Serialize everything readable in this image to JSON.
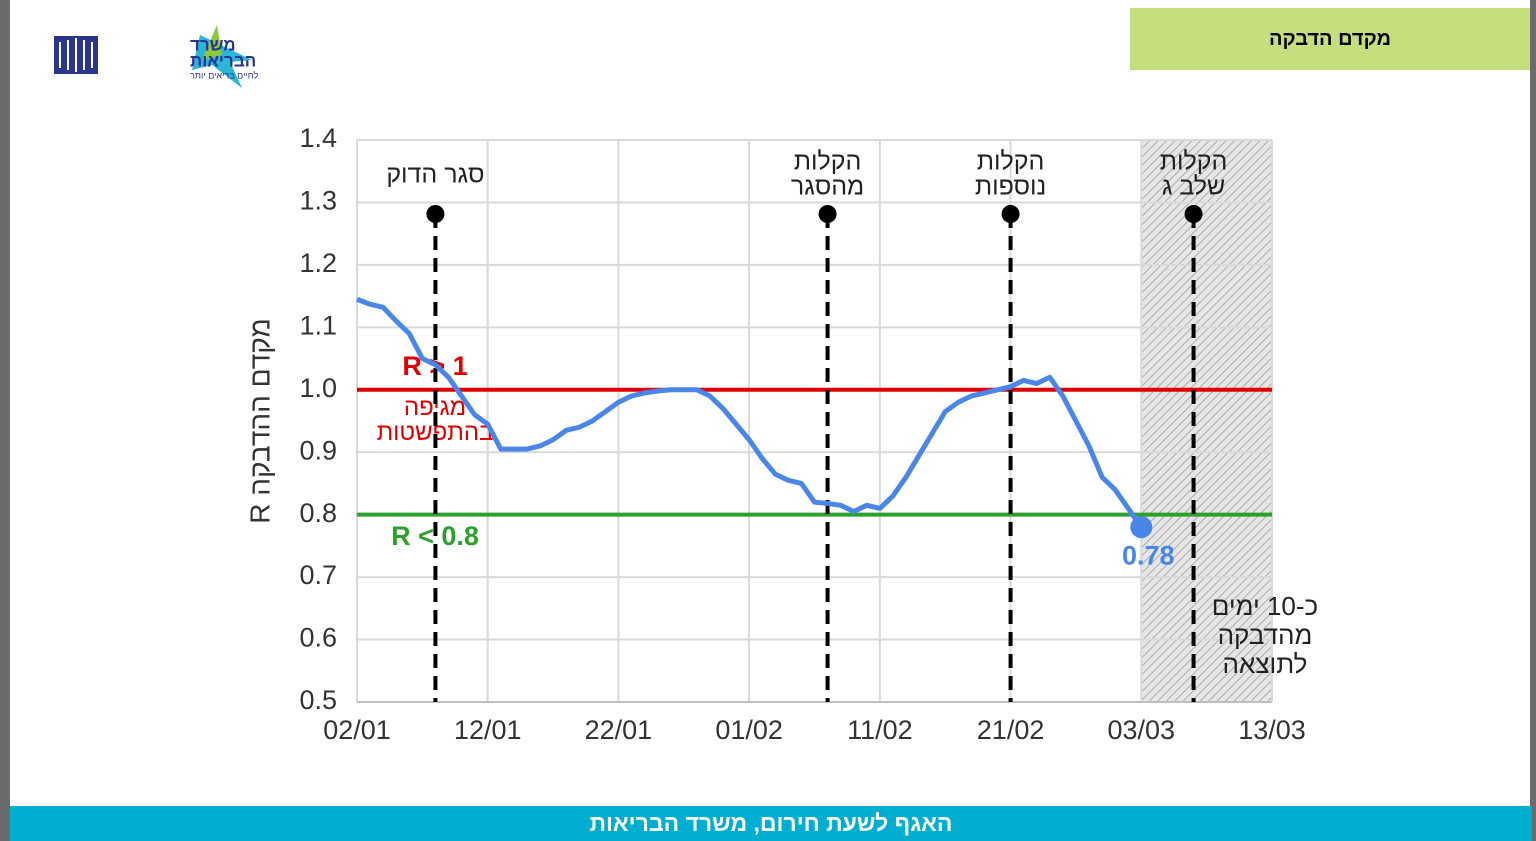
{
  "header": {
    "title": "מקדם הדבקה",
    "logo_name": [
      "משרד",
      "הבריאות"
    ],
    "logo_tagline": "לחיים בריאים יותר"
  },
  "footer": "האגף לשעת חירום, משרד הבריאות",
  "chart_data": {
    "type": "line",
    "y_label": "מקדם ההדבקה R",
    "x": [
      "02/01",
      "03/01",
      "04/01",
      "05/01",
      "06/01",
      "07/01",
      "08/01",
      "09/01",
      "10/01",
      "11/01",
      "12/01",
      "13/01",
      "14/01",
      "15/01",
      "16/01",
      "17/01",
      "18/01",
      "19/01",
      "20/01",
      "21/01",
      "22/01",
      "23/01",
      "24/01",
      "25/01",
      "26/01",
      "27/01",
      "28/01",
      "29/01",
      "30/01",
      "31/01",
      "01/02",
      "02/02",
      "03/02",
      "04/02",
      "05/02",
      "06/02",
      "07/02",
      "08/02",
      "09/02",
      "10/02",
      "11/02",
      "12/02",
      "13/02",
      "14/02",
      "15/02",
      "16/02",
      "17/02",
      "18/02",
      "19/02",
      "20/02",
      "21/02",
      "22/02",
      "23/02",
      "24/02",
      "25/02",
      "26/02",
      "27/02",
      "28/02",
      "01/03",
      "02/03",
      "03/03"
    ],
    "series": [
      {
        "color": "#4a86e8",
        "values": [
          1.145,
          1.137,
          1.132,
          1.11,
          1.09,
          1.05,
          1.04,
          1.02,
          0.99,
          0.96,
          0.945,
          0.905,
          0.905,
          0.905,
          0.91,
          0.92,
          0.935,
          0.94,
          0.95,
          0.965,
          0.98,
          0.99,
          0.995,
          0.998,
          1.0,
          1.0,
          1.0,
          0.99,
          0.97,
          0.945,
          0.92,
          0.89,
          0.865,
          0.855,
          0.85,
          0.82,
          0.818,
          0.815,
          0.805,
          0.815,
          0.81,
          0.83,
          0.86,
          0.895,
          0.93,
          0.965,
          0.98,
          0.99,
          0.995,
          1.0,
          1.005,
          1.015,
          1.01,
          1.02,
          0.99,
          0.95,
          0.91,
          0.86,
          0.84,
          0.81,
          0.78
        ]
      }
    ],
    "xlim": [
      "02/01",
      "13/03"
    ],
    "xticks": [
      "02/01",
      "12/01",
      "22/01",
      "01/02",
      "11/02",
      "21/02",
      "03/03",
      "13/03"
    ],
    "ylim": [
      0.5,
      1.4
    ],
    "yticks": [
      0.5,
      0.6,
      0.7,
      0.8,
      0.9,
      {
        "value": 1,
        "label": "1.0"
      },
      1.1,
      1.2,
      1.3,
      1.4
    ],
    "grid": true,
    "hlines": [
      {
        "y": 1,
        "color": "#e00000",
        "label": "R > 1",
        "note": [
          "מגיפה",
          "בהתפשטות"
        ]
      },
      {
        "y": 0.8,
        "color": "#2ca02c",
        "label": "R < 0.8"
      }
    ],
    "events": [
      {
        "x": "08/01",
        "label": [
          "סגר הדוק"
        ]
      },
      {
        "x": "07/02",
        "label": [
          "הקלות",
          "מהסגר"
        ]
      },
      {
        "x": "21/02",
        "label": [
          "הקלות",
          "נוספות"
        ]
      },
      {
        "x": "07/03",
        "label": [
          "הקלות",
          "שלב ג"
        ]
      }
    ],
    "shaded": {
      "from": "03/03",
      "to": "13/03",
      "label": [
        "כ-10 ימים",
        "מהדבקה",
        "לתוצאה"
      ]
    }
  }
}
